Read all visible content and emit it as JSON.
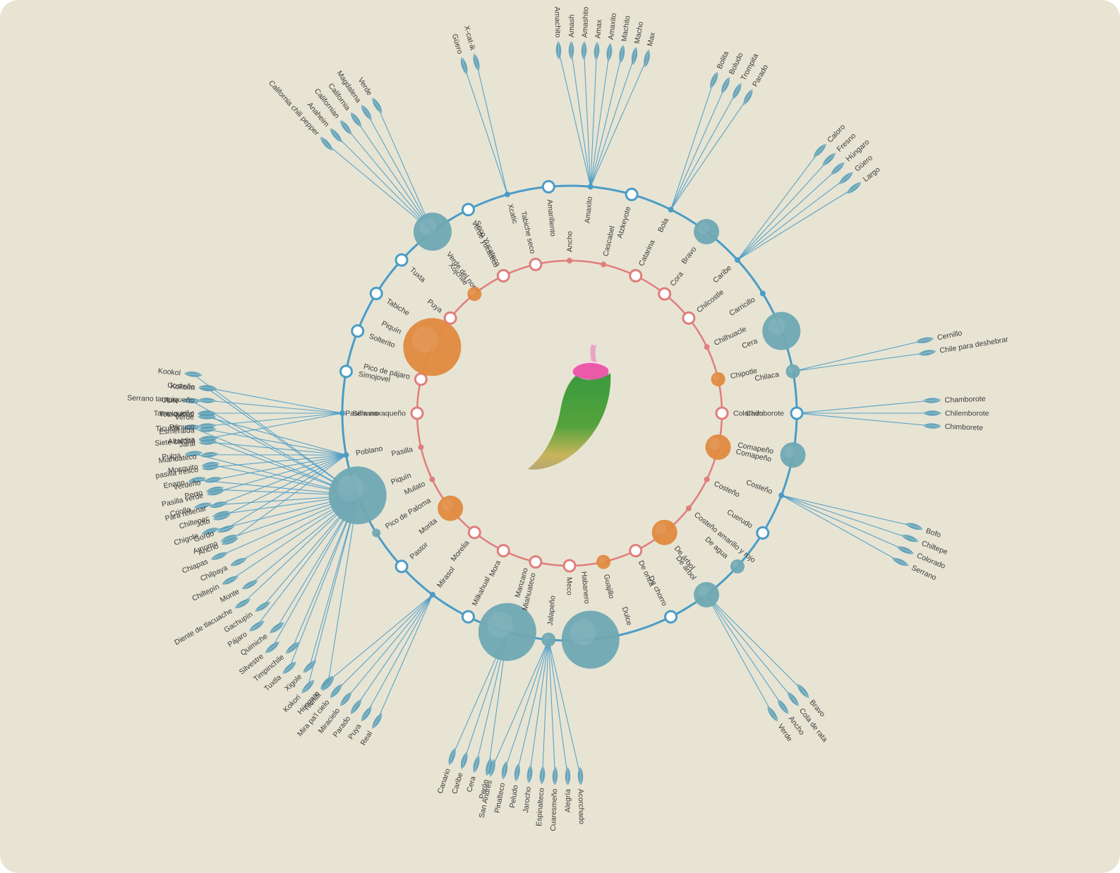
{
  "colors": {
    "background": "#e7e4d4",
    "outer_ring": "#4b9cc6",
    "inner_ring": "#e07e7c",
    "outer_node_fill": "#6fa8b3",
    "inner_node_fill": "#e08a3f",
    "leaf": "#5e9fb6",
    "label": "#3b3b3b"
  },
  "center_icon": "chili-pepper-icon",
  "inner_ring": [
    {
      "label": "Ancho",
      "kind": "dot"
    },
    {
      "label": "Cascabel",
      "kind": "dot"
    },
    {
      "label": "Catarina",
      "kind": "hollow"
    },
    {
      "label": "Cora",
      "kind": "hollow"
    },
    {
      "label": "Chilcostle",
      "kind": "hollow"
    },
    {
      "label": "Chilhuacle",
      "kind": "dot"
    },
    {
      "label": "Chipotle",
      "kind": "filled-s"
    },
    {
      "label": "Colorado",
      "kind": "hollow"
    },
    {
      "label": "Comapeño",
      "kind": "filled-m"
    },
    {
      "label": "Costeño",
      "kind": "dot"
    },
    {
      "label": "Costeño amarillo y rojo",
      "kind": "dot"
    },
    {
      "label": "De árbol",
      "kind": "filled-m"
    },
    {
      "label": "De onza",
      "kind": "hollow"
    },
    {
      "label": "Guajillo",
      "kind": "filled-s"
    },
    {
      "label": "Meco",
      "kind": "hollow"
    },
    {
      "label": "Miahuateco",
      "kind": "hollow"
    },
    {
      "label": "Mora",
      "kind": "hollow"
    },
    {
      "label": "Morelia",
      "kind": "hollow"
    },
    {
      "label": "Morita",
      "kind": "filled-m"
    },
    {
      "label": "Mulato",
      "kind": "dot"
    },
    {
      "label": "Pasilla",
      "kind": "dot"
    },
    {
      "label": "Pasilla oaxaqueño",
      "kind": "hollow"
    },
    {
      "label": "Pico de pájaro",
      "kind": "hollow"
    },
    {
      "label": "Piquín",
      "kind": "filled-xl"
    },
    {
      "label": "Puya",
      "kind": "hollow"
    },
    {
      "label": "Xojchile",
      "kind": "filled-s"
    },
    {
      "label": "Seco Yucateco",
      "kind": "hollow"
    },
    {
      "label": "Tabiche seco",
      "kind": "hollow"
    }
  ],
  "outer_ring": [
    {
      "label": "Amarillento",
      "kind": "hollow",
      "leaves": []
    },
    {
      "label": "Amaxito",
      "kind": "dot",
      "leaves": [
        "Amachito",
        "Amash",
        "Amashito",
        "Amax",
        "Amaxito",
        "Machito",
        "Macho",
        "Max"
      ]
    },
    {
      "label": "Atzkeyote",
      "kind": "hollow",
      "leaves": []
    },
    {
      "label": "Bola",
      "kind": "dot",
      "leaves": [
        "Bolita",
        "Boludo",
        "Trompita",
        "Parado"
      ]
    },
    {
      "label": "Bravo",
      "kind": "filled-m",
      "leaves": []
    },
    {
      "label": "Caribe",
      "kind": "dot",
      "leaves": [
        "Caloro",
        "Fresno",
        "Húngaro",
        "Güero",
        "Largo"
      ]
    },
    {
      "label": "Carricillo",
      "kind": "dot",
      "leaves": []
    },
    {
      "label": "Cera",
      "kind": "filled-l",
      "leaves": []
    },
    {
      "label": "Chilaca",
      "kind": "filled-s",
      "leaves": [
        "Cernillo",
        "Chile para deshebrar"
      ]
    },
    {
      "label": "Chimborote",
      "kind": "hollow",
      "leaves": [
        "Chamborote",
        "Chilemborote",
        "Chimborete"
      ]
    },
    {
      "label": "Comapeño",
      "kind": "filled-m",
      "leaves": []
    },
    {
      "label": "Costeño",
      "kind": "dot",
      "leaves": [
        "Bofo",
        "Chiltepe",
        "Colorado",
        "Serrano"
      ]
    },
    {
      "label": "Cuerudo",
      "kind": "hollow",
      "leaves": []
    },
    {
      "label": "De agua",
      "kind": "filled-s",
      "leaves": []
    },
    {
      "label": "De árbol",
      "kind": "filled-m",
      "leaves": [
        "Bravo",
        "Cola de rata",
        "Ancho",
        "Verde"
      ]
    },
    {
      "label": "De chorro",
      "kind": "hollow",
      "leaves": []
    },
    {
      "label": "Dulce",
      "kind": "none",
      "leaves": []
    },
    {
      "label": "Habanero",
      "kind": "filled-xl",
      "leaves": []
    },
    {
      "label": "Jalapeño",
      "kind": "filled-s",
      "leaves": [
        "Acorchado",
        "Alegría",
        "Cuaresmeño",
        "Espinalteco",
        "Jarocho",
        "Peludo",
        "Pinalteco",
        "San Andrés"
      ]
    },
    {
      "label": "Manzano",
      "kind": "filled-xl",
      "leaves": [
        "Perón",
        "Cera",
        "Caribe",
        "Canario"
      ]
    },
    {
      "label": "Milkahual",
      "kind": "hollow",
      "leaves": []
    },
    {
      "label": "Mirasol",
      "kind": "dot",
      "leaves": [
        "Real",
        "Puya",
        "Parado",
        "Miracielo",
        "Mira pa'l cielo",
        "Húngaro"
      ]
    },
    {
      "label": "Pastor",
      "kind": "hollow",
      "leaves": []
    },
    {
      "label": "Pico de Paloma",
      "kind": "filled-xs",
      "leaves": []
    },
    {
      "label": "Piquín",
      "kind": "filled-xl",
      "leaves": [
        "Tilchilli",
        "Kokori",
        "Xigole",
        "Tuxtla",
        "Timpinchile",
        "Silvestre",
        "Quimiche",
        "Pájaro",
        "Gachupín",
        "Diente de tlacuache",
        "Monte",
        "Chiltepín",
        "Chilpaya",
        "Chiapas",
        "Amomo",
        "Chigole",
        "Chiltepec",
        "Criollo",
        "Perro",
        "Enano",
        "Mosquito",
        "Pulga",
        "Siete caldos",
        "Ticushi",
        "Totocuitlatl",
        "Ulute",
        "Kokoim",
        "Kookol"
      ]
    },
    {
      "label": "Poblano",
      "kind": "dot",
      "leaves": [
        "Ancho",
        "Gordo",
        "Joto",
        "Para rellenar",
        "Pasilla verde",
        "Verdeño",
        "pasilla fresco",
        "Miahuateco",
        "Jaral",
        "Esmeralda",
        "Verde"
      ]
    },
    {
      "label": "Serrano",
      "kind": "dot",
      "leaves": [
        "Altamira",
        "Pánuco",
        "Tampiqueño",
        "Serrano tampiqueño",
        "Costeño"
      ]
    },
    {
      "label": "Simojovel",
      "kind": "hollow",
      "leaves": []
    },
    {
      "label": "Solterito",
      "kind": "hollow",
      "leaves": []
    },
    {
      "label": "Tabiche",
      "kind": "hollow",
      "leaves": []
    },
    {
      "label": "Tuxta",
      "kind": "hollow",
      "leaves": []
    },
    {
      "label": "Verde del norte",
      "kind": "filled-l",
      "leaves": [
        "California chili pepper",
        "Anaheim",
        "Californian",
        "California",
        "Magdalena",
        "Verde"
      ]
    },
    {
      "label": "Verde yucateco",
      "kind": "hollow",
      "leaves": []
    },
    {
      "label": "Xcatic",
      "kind": "dot",
      "leaves": [
        "Güero",
        "X-cat-ik"
      ]
    }
  ]
}
